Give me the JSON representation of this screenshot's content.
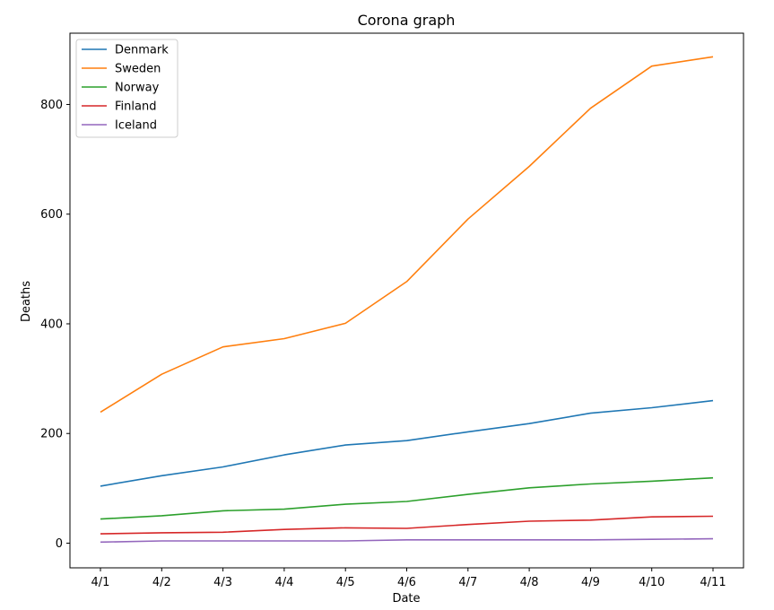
{
  "chart_data": {
    "type": "line",
    "title": "Corona graph",
    "xlabel": "Date",
    "ylabel": "Deaths",
    "categories": [
      "4/1",
      "4/2",
      "4/3",
      "4/4",
      "4/5",
      "4/6",
      "4/7",
      "4/8",
      "4/9",
      "4/10",
      "4/11"
    ],
    "ylim": [
      -45,
      930
    ],
    "yticks": [
      0,
      200,
      400,
      600,
      800
    ],
    "grid": false,
    "legend": "top-left",
    "series": [
      {
        "name": "Denmark",
        "color": "#1f77b4",
        "values": [
          104,
          123,
          139,
          161,
          179,
          187,
          203,
          218,
          237,
          247,
          260
        ]
      },
      {
        "name": "Sweden",
        "color": "#ff7f0e",
        "values": [
          239,
          308,
          358,
          373,
          401,
          477,
          591,
          687,
          793,
          870,
          887
        ]
      },
      {
        "name": "Norway",
        "color": "#2ca02c",
        "values": [
          44,
          50,
          59,
          62,
          71,
          76,
          89,
          101,
          108,
          113,
          119
        ]
      },
      {
        "name": "Finland",
        "color": "#d62728",
        "values": [
          17,
          19,
          20,
          25,
          28,
          27,
          34,
          40,
          42,
          48,
          49
        ]
      },
      {
        "name": "Iceland",
        "color": "#9467bd",
        "values": [
          2,
          4,
          4,
          4,
          4,
          6,
          6,
          6,
          6,
          7,
          8
        ]
      }
    ]
  }
}
